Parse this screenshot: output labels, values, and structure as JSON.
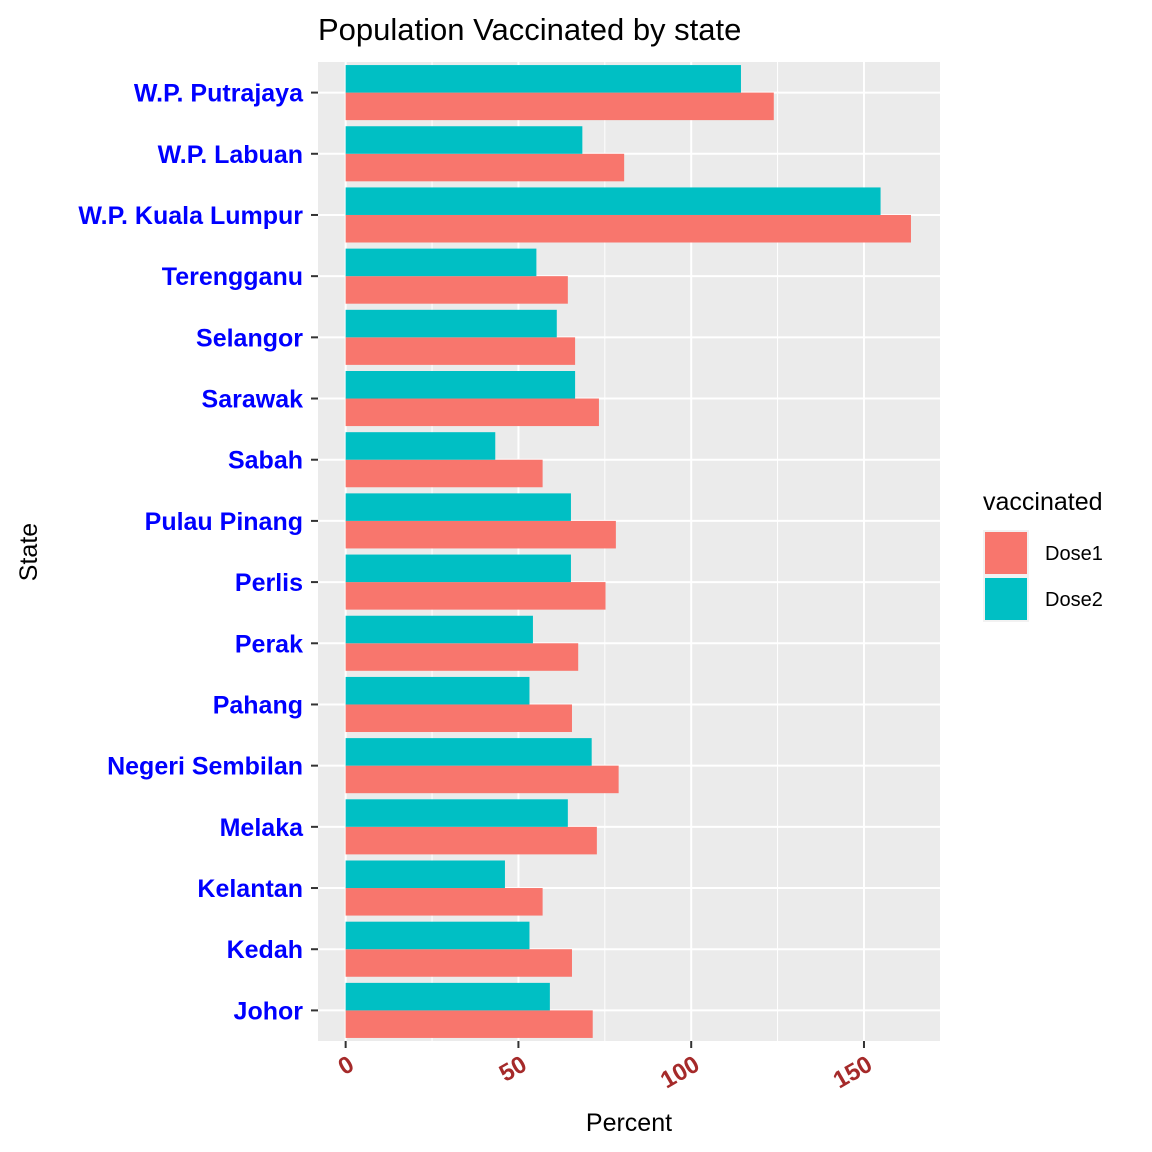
{
  "chart_data": {
    "type": "bar",
    "orientation": "horizontal",
    "title": "Population Vaccinated by state",
    "xlabel": "Percent",
    "ylabel": "State",
    "xlim": [
      -8,
      172
    ],
    "xticks": [
      0,
      50,
      100,
      150
    ],
    "xtick_labels": [
      "0",
      "50",
      "100",
      "150"
    ],
    "grid": true,
    "legend_position": "right",
    "legend_title": "vaccinated",
    "categories": [
      "Johor",
      "Kedah",
      "Kelantan",
      "Melaka",
      "Negeri Sembilan",
      "Pahang",
      "Perak",
      "Perlis",
      "Pulau Pinang",
      "Sabah",
      "Sarawak",
      "Selangor",
      "Terengganu",
      "W.P. Kuala Lumpur",
      "W.P. Labuan",
      "W.P. Putrajaya"
    ],
    "series": [
      {
        "name": "Dose1",
        "color": "#F8766D",
        "values": [
          71.5,
          65.5,
          57,
          72.7,
          79,
          65.5,
          67.3,
          75.2,
          78.2,
          57,
          73.3,
          66.4,
          64.3,
          163.6,
          80.6,
          123.9
        ]
      },
      {
        "name": "Dose2",
        "color": "#00BFC4",
        "values": [
          59.1,
          53.2,
          46.1,
          64.3,
          71.2,
          53.2,
          54.2,
          65.2,
          65.2,
          43.3,
          66.4,
          61.1,
          55.2,
          154.8,
          68.5,
          114.4
        ]
      }
    ],
    "colors": {
      "panel_background": "#EBEBEB",
      "grid": "#FFFFFF",
      "category_label": "#0000FF",
      "tick_label": "#A52A2A"
    }
  }
}
